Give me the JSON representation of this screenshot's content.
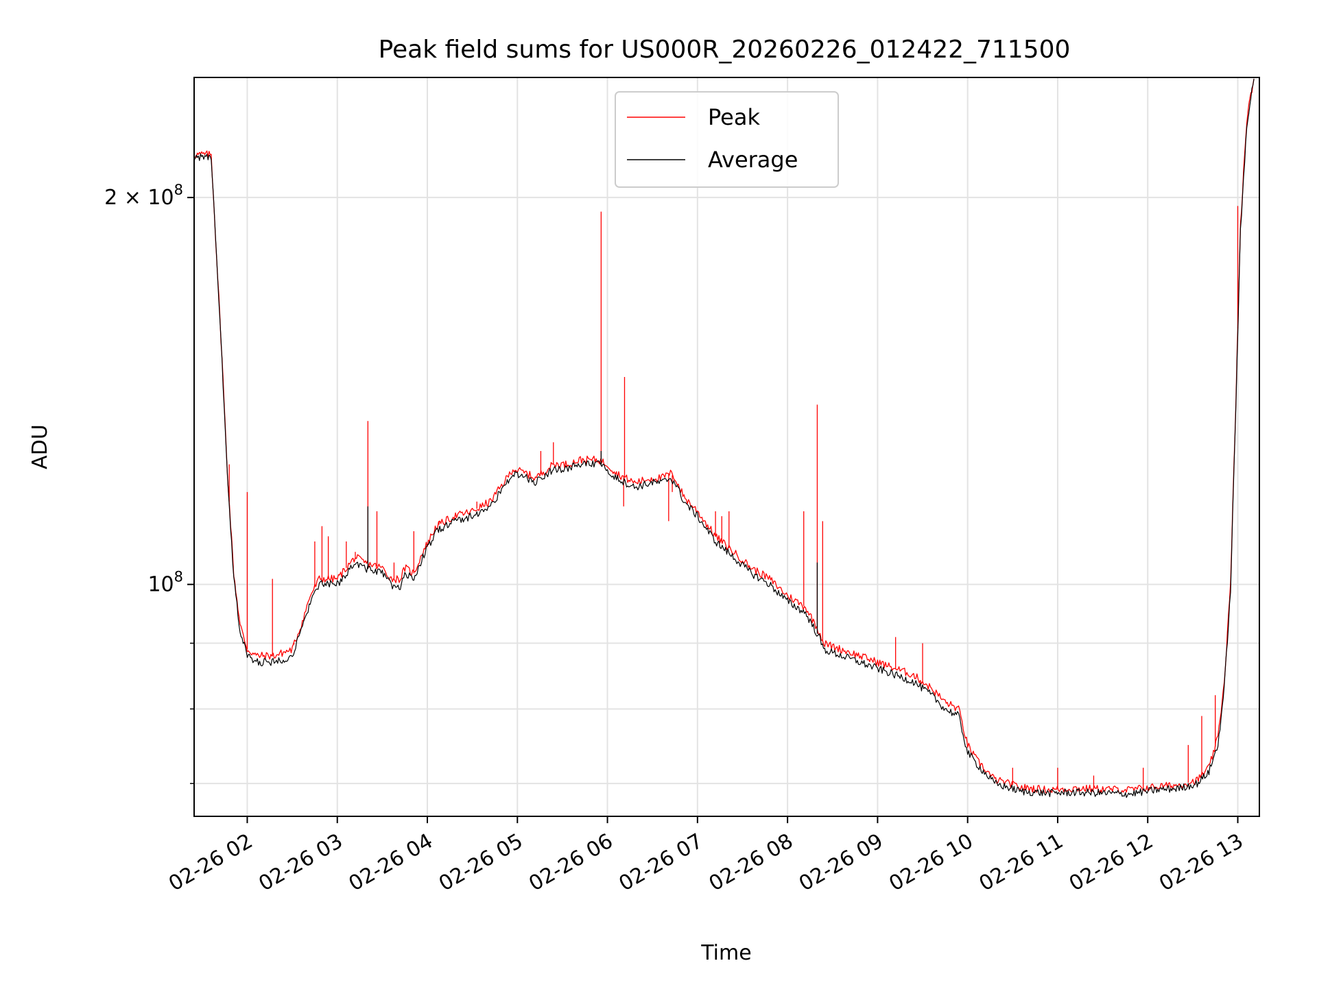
{
  "chart_data": {
    "type": "line",
    "title": "Peak field sums for US000R_20260226_012422_711500",
    "xlabel": "Time",
    "ylabel": "ADU",
    "yscale": "log",
    "grid": true,
    "legend_position": "top-center",
    "x_tick_labels": [
      "02-26 02",
      "02-26 03",
      "02-26 04",
      "02-26 05",
      "02-26 06",
      "02-26 07",
      "02-26 08",
      "02-26 09",
      "02-26 10",
      "02-26 11",
      "02-26 12",
      "02-26 13"
    ],
    "x_tick_hours": [
      2,
      3,
      4,
      5,
      6,
      7,
      8,
      9,
      10,
      11,
      12,
      13
    ],
    "xlim_hours": [
      1.41,
      13.24
    ],
    "ylim": [
      66000000,
      248000000
    ],
    "y_major_ticks": [
      {
        "value": 100000000,
        "base": "10",
        "exp": "8",
        "prefix": ""
      },
      {
        "value": 200000000,
        "base": "10",
        "exp": "8",
        "prefix": "2 × "
      }
    ],
    "y_minor_ticks": [
      70000000,
      80000000,
      90000000,
      300000000
    ],
    "series": [
      {
        "name": "Peak",
        "color": "#ff0000",
        "points": [
          [
            1.41,
            216
          ],
          [
            1.6,
            216
          ],
          [
            1.72,
            150
          ],
          [
            1.78,
            122
          ],
          [
            1.85,
            102
          ],
          [
            1.92,
            93
          ],
          [
            2.0,
            89
          ],
          [
            2.1,
            88
          ],
          [
            2.3,
            88
          ],
          [
            2.5,
            89
          ],
          [
            2.6,
            93
          ],
          [
            2.7,
            98
          ],
          [
            2.8,
            101
          ],
          [
            2.9,
            101
          ],
          [
            3.0,
            101
          ],
          [
            3.1,
            103
          ],
          [
            3.2,
            105
          ],
          [
            3.3,
            104
          ],
          [
            3.5,
            103
          ],
          [
            3.6,
            101
          ],
          [
            3.7,
            101
          ],
          [
            3.75,
            103
          ],
          [
            3.85,
            102
          ],
          [
            3.95,
            106
          ],
          [
            4.1,
            111
          ],
          [
            4.3,
            113
          ],
          [
            4.5,
            114
          ],
          [
            4.7,
            116
          ],
          [
            4.85,
            120
          ],
          [
            4.95,
            123
          ],
          [
            5.1,
            122
          ],
          [
            5.2,
            121
          ],
          [
            5.4,
            124
          ],
          [
            5.55,
            124
          ],
          [
            5.7,
            125
          ],
          [
            5.9,
            125
          ],
          [
            6.0,
            124
          ],
          [
            6.1,
            122
          ],
          [
            6.3,
            120
          ],
          [
            6.5,
            121
          ],
          [
            6.6,
            121
          ],
          [
            6.7,
            122
          ],
          [
            6.75,
            121
          ],
          [
            6.85,
            117
          ],
          [
            7.0,
            114
          ],
          [
            7.2,
            109
          ],
          [
            7.4,
            106
          ],
          [
            7.6,
            103
          ],
          [
            7.8,
            101
          ],
          [
            8.0,
            98
          ],
          [
            8.2,
            96
          ],
          [
            8.35,
            92
          ],
          [
            8.4,
            90
          ],
          [
            8.6,
            89
          ],
          [
            8.8,
            88
          ],
          [
            9.0,
            87
          ],
          [
            9.2,
            86
          ],
          [
            9.4,
            85
          ],
          [
            9.6,
            83
          ],
          [
            9.75,
            81
          ],
          [
            9.9,
            80
          ],
          [
            10.0,
            75
          ],
          [
            10.1,
            73
          ],
          [
            10.3,
            70.5
          ],
          [
            10.6,
            69.5
          ],
          [
            10.9,
            69.2
          ],
          [
            11.2,
            69.4
          ],
          [
            11.5,
            69.3
          ],
          [
            11.8,
            69.2
          ],
          [
            12.1,
            69.6
          ],
          [
            12.35,
            69.8
          ],
          [
            12.55,
            70.4
          ],
          [
            12.68,
            72
          ],
          [
            12.78,
            76
          ],
          [
            12.85,
            84
          ],
          [
            12.92,
            100
          ],
          [
            12.98,
            140
          ],
          [
            13.03,
            190
          ],
          [
            13.1,
            230
          ],
          [
            13.18,
            248
          ]
        ],
        "spikes": [
          [
            1.8,
            124
          ],
          [
            2.0,
            118
          ],
          [
            2.28,
            101
          ],
          [
            2.52,
            90
          ],
          [
            2.75,
            108
          ],
          [
            2.83,
            111
          ],
          [
            2.9,
            109
          ],
          [
            3.1,
            108
          ],
          [
            3.2,
            106
          ],
          [
            3.34,
            134
          ],
          [
            3.44,
            114
          ],
          [
            3.63,
            104
          ],
          [
            3.85,
            110
          ],
          [
            4.13,
            112
          ],
          [
            4.55,
            116
          ],
          [
            5.26,
            127
          ],
          [
            5.4,
            129
          ],
          [
            5.93,
            195
          ],
          [
            6.18,
            115
          ],
          [
            6.19,
            145
          ],
          [
            6.68,
            112
          ],
          [
            6.72,
            118
          ],
          [
            7.2,
            114
          ],
          [
            7.27,
            113
          ],
          [
            7.35,
            114
          ],
          [
            8.18,
            114
          ],
          [
            8.33,
            138
          ],
          [
            8.39,
            112
          ],
          [
            9.2,
            91
          ],
          [
            9.5,
            90
          ],
          [
            10.5,
            72
          ],
          [
            11.0,
            72
          ],
          [
            11.4,
            71
          ],
          [
            11.95,
            72
          ],
          [
            12.45,
            75
          ],
          [
            12.6,
            79
          ],
          [
            12.75,
            82
          ],
          [
            13.0,
            197
          ]
        ]
      },
      {
        "name": "Average",
        "color": "#000000",
        "points": [
          [
            1.41,
            215
          ],
          [
            1.6,
            215
          ],
          [
            1.72,
            149
          ],
          [
            1.78,
            121
          ],
          [
            1.85,
            101
          ],
          [
            1.92,
            92
          ],
          [
            2.0,
            88
          ],
          [
            2.1,
            87
          ],
          [
            2.3,
            87
          ],
          [
            2.5,
            88
          ],
          [
            2.6,
            92
          ],
          [
            2.7,
            97
          ],
          [
            2.8,
            100
          ],
          [
            2.9,
            100
          ],
          [
            3.0,
            100
          ],
          [
            3.1,
            102
          ],
          [
            3.2,
            104
          ],
          [
            3.3,
            103
          ],
          [
            3.5,
            102
          ],
          [
            3.6,
            100
          ],
          [
            3.7,
            99
          ],
          [
            3.75,
            102
          ],
          [
            3.85,
            101
          ],
          [
            3.95,
            105
          ],
          [
            4.1,
            110
          ],
          [
            4.3,
            112
          ],
          [
            4.5,
            113
          ],
          [
            4.7,
            115
          ],
          [
            4.85,
            119
          ],
          [
            4.95,
            122
          ],
          [
            5.1,
            121
          ],
          [
            5.2,
            120
          ],
          [
            5.4,
            123
          ],
          [
            5.55,
            123
          ],
          [
            5.7,
            124
          ],
          [
            5.9,
            124
          ],
          [
            6.0,
            123
          ],
          [
            6.1,
            121
          ],
          [
            6.3,
            119
          ],
          [
            6.5,
            120
          ],
          [
            6.6,
            120
          ],
          [
            6.7,
            121
          ],
          [
            6.75,
            120
          ],
          [
            6.85,
            116
          ],
          [
            7.0,
            113
          ],
          [
            7.2,
            108
          ],
          [
            7.4,
            105
          ],
          [
            7.6,
            102
          ],
          [
            7.8,
            100
          ],
          [
            8.0,
            97
          ],
          [
            8.2,
            95
          ],
          [
            8.35,
            91
          ],
          [
            8.4,
            89
          ],
          [
            8.6,
            88
          ],
          [
            8.8,
            87
          ],
          [
            9.0,
            86
          ],
          [
            9.2,
            85
          ],
          [
            9.4,
            84
          ],
          [
            9.6,
            82
          ],
          [
            9.75,
            80
          ],
          [
            9.9,
            79
          ],
          [
            10.0,
            74
          ],
          [
            10.1,
            72.5
          ],
          [
            10.3,
            70
          ],
          [
            10.6,
            69
          ],
          [
            10.9,
            68.8
          ],
          [
            11.2,
            68.9
          ],
          [
            11.5,
            68.8
          ],
          [
            11.8,
            68.7
          ],
          [
            12.1,
            69.2
          ],
          [
            12.35,
            69.4
          ],
          [
            12.55,
            70
          ],
          [
            12.68,
            71.5
          ],
          [
            12.78,
            75
          ],
          [
            12.85,
            83
          ],
          [
            12.92,
            99
          ],
          [
            12.98,
            139
          ],
          [
            13.03,
            188
          ],
          [
            13.1,
            228
          ],
          [
            13.18,
            248
          ]
        ],
        "spikes": [
          [
            3.34,
            115
          ],
          [
            5.93,
            127
          ],
          [
            8.33,
            104
          ]
        ]
      }
    ]
  }
}
